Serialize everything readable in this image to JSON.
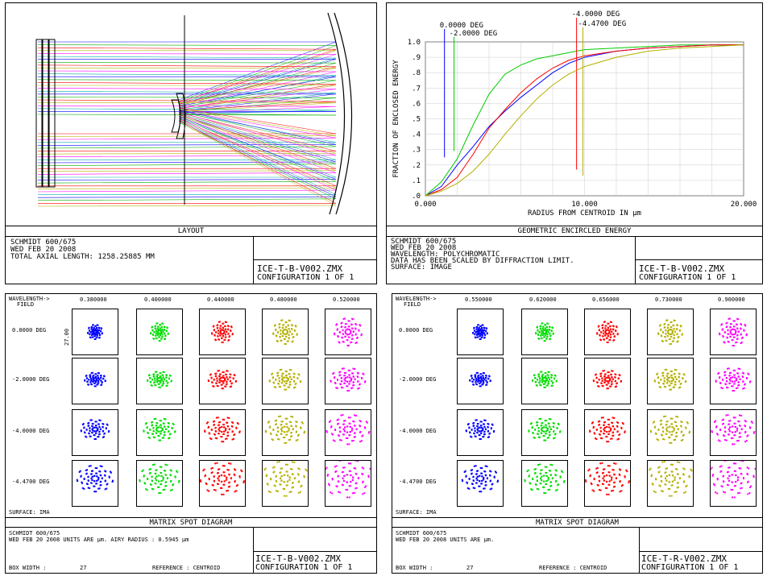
{
  "layout_panel": {
    "caption": "LAYOUT",
    "info_lines": [
      "SCHMIDT 600/675",
      "WED FEB 20 2008",
      "TOTAL AXIAL LENGTH: 1258.25885 MM"
    ],
    "file_name": "ICE-T-B-V002.ZMX",
    "configuration": "CONFIGURATION 1 OF 1"
  },
  "energy_panel": {
    "caption": "GEOMETRIC ENCIRCLED ENERGY",
    "info_lines": [
      "SCHMIDT 600/675",
      "WED FEB 20 2008",
      "WAVELENGTH: POLYCHROMATIC",
      "DATA HAS BEEN SCALED BY DIFFRACTION LIMIT.",
      "SURFACE: IMAGE"
    ],
    "file_name": "ICE-T-B-V002.ZMX",
    "configuration": "CONFIGURATION 1 OF 1",
    "chart_data": {
      "type": "line",
      "xlabel": "RADIUS FROM CENTROID IN µm",
      "ylabel": "FRACTION OF ENCLOSED ENERGY",
      "xlim": [
        0,
        20
      ],
      "ylim": [
        0,
        1
      ],
      "x_ticks": [
        "0.000",
        "10.000",
        "20.000"
      ],
      "y_ticks": [
        ".0",
        ".1",
        ".2",
        ".3",
        ".4",
        ".5",
        ".6",
        ".7",
        ".8",
        ".9",
        "1.0"
      ],
      "grid": true,
      "series": [
        {
          "name": "0.0000 DEG",
          "color": "#0000ff",
          "x": [
            0,
            1,
            2,
            3,
            4,
            5,
            6,
            7,
            8,
            9,
            10,
            12,
            14,
            16,
            18,
            20
          ],
          "y": [
            0,
            0.06,
            0.2,
            0.32,
            0.45,
            0.55,
            0.64,
            0.72,
            0.8,
            0.86,
            0.9,
            0.94,
            0.96,
            0.97,
            0.98,
            0.98
          ]
        },
        {
          "name": "-2.0000 DEG",
          "color": "#00cc00",
          "x": [
            0,
            1,
            2,
            3,
            4,
            5,
            6,
            7,
            8,
            9,
            10,
            12,
            14,
            16,
            18,
            20
          ],
          "y": [
            0,
            0.09,
            0.24,
            0.46,
            0.66,
            0.79,
            0.85,
            0.89,
            0.91,
            0.93,
            0.95,
            0.96,
            0.97,
            0.98,
            0.98,
            0.98
          ]
        },
        {
          "name": "-4.0000 DEG",
          "color": "#ff0000",
          "x": [
            0,
            1,
            2,
            3,
            4,
            5,
            6,
            7,
            8,
            9,
            10,
            12,
            14,
            16,
            18,
            20
          ],
          "y": [
            0,
            0.04,
            0.12,
            0.27,
            0.44,
            0.56,
            0.67,
            0.76,
            0.83,
            0.88,
            0.91,
            0.94,
            0.96,
            0.97,
            0.98,
            0.98
          ]
        },
        {
          "name": "-4.4700 DEG",
          "color": "#b5b000",
          "x": [
            0,
            1,
            2,
            3,
            4,
            5,
            6,
            7,
            8,
            9,
            10,
            12,
            14,
            16,
            18,
            20
          ],
          "y": [
            0,
            0.03,
            0.08,
            0.16,
            0.27,
            0.4,
            0.52,
            0.63,
            0.72,
            0.79,
            0.84,
            0.9,
            0.94,
            0.96,
            0.97,
            0.98
          ]
        }
      ]
    }
  },
  "spot_left": {
    "wavelength_label": "WAVELENGTH->",
    "field_label": "FIELD",
    "wavelengths": [
      "0.380000",
      "0.400000",
      "0.440000",
      "0.480000",
      "0.520000"
    ],
    "colors": [
      "#0000ff",
      "#00dd00",
      "#ff0000",
      "#b5b000",
      "#ff00ff"
    ],
    "fields": [
      "0.0000 DEG",
      "-2.0000 DEG",
      "-4.0000 DEG",
      "-4.4700 DEG"
    ],
    "scale_label": "27.00",
    "surface": "SURFACE: IMA",
    "caption": "MATRIX SPOT DIAGRAM",
    "info_lines": [
      "SCHMIDT 600/675",
      "WED FEB 20 2008   UNITS ARE µm.   AIRY RADIUS : 0.5945 µm"
    ],
    "box_width_label": "BOX WIDTH   :",
    "box_width": "27",
    "reference": "REFERENCE   : CENTROID",
    "file_name": "ICE-T-B-V002.ZMX",
    "configuration": "CONFIGURATION 1 OF 1"
  },
  "spot_right": {
    "wavelength_label": "WAVELENGTH->",
    "field_label": "FIELD",
    "wavelengths": [
      "0.550000",
      "0.620000",
      "0.656000",
      "0.730000",
      "0.900000"
    ],
    "colors": [
      "#0000ff",
      "#00dd00",
      "#ff0000",
      "#b5b000",
      "#ff00ff"
    ],
    "fields": [
      "0.0000 DEG",
      "-2.0000 DEG",
      "-4.0000 DEG",
      "-4.4700 DEG"
    ],
    "surface": "SURFACE: IMA",
    "caption": "MATRIX SPOT DIAGRAM",
    "info_lines": [
      "SCHMIDT 600/675",
      "WED FEB 20 2008   UNITS ARE µm."
    ],
    "box_width_label": "BOX WIDTH   :",
    "box_width": "27",
    "reference": "REFERENCE   : CENTROID",
    "file_name": "ICE-T-R-V002.ZMX",
    "configuration": "CONFIGURATION 1 OF 1"
  }
}
